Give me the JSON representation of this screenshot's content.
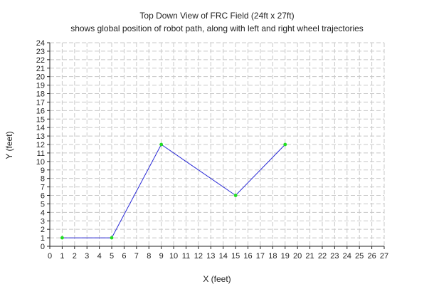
{
  "chart_data": {
    "type": "line",
    "title": "Top Down View of FRC Field (24ft x 27ft)",
    "subtitle": "shows global position of robot path, along with left and right wheel trajectories",
    "xlabel": "X (feet)",
    "ylabel": "Y (feet)",
    "xlim": [
      0,
      27
    ],
    "ylim": [
      0,
      24
    ],
    "grid": true,
    "series": [
      {
        "x": [
          1,
          5,
          9,
          15,
          19
        ],
        "y": [
          1,
          1,
          12,
          6,
          12
        ],
        "line_color": "#2b2bd6",
        "marker_color": "#22dd22"
      }
    ]
  }
}
